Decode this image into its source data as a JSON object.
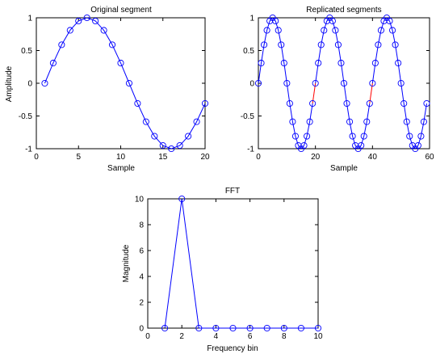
{
  "colors": {
    "series": "#0000ff",
    "joint": "#ff0000",
    "axes": "#000000",
    "background": "#ffffff"
  },
  "chart_data": [
    {
      "id": "original",
      "type": "line",
      "title": "Original segment",
      "xlabel": "Sample",
      "ylabel": "Amplitude",
      "xlim": [
        0,
        20
      ],
      "ylim": [
        -1,
        1
      ],
      "xticks": [
        0,
        5,
        10,
        15,
        20
      ],
      "yticks": [
        -1,
        -0.5,
        0,
        0.5,
        1
      ],
      "xticklabels": [
        "0",
        "5",
        "10",
        "15",
        "20"
      ],
      "yticklabels": [
        "-1",
        "-0.5",
        "0",
        "0.5",
        "1"
      ],
      "marker": "circle",
      "x": [
        1,
        2,
        3,
        4,
        5,
        6,
        7,
        8,
        9,
        10,
        11,
        12,
        13,
        14,
        15,
        16,
        17,
        18,
        19,
        20
      ],
      "y": [
        0,
        0.309,
        0.588,
        0.809,
        0.951,
        1,
        0.951,
        0.809,
        0.588,
        0.309,
        0,
        -0.309,
        -0.588,
        -0.809,
        -0.951,
        -1,
        -0.951,
        -0.809,
        -0.588,
        -0.309
      ]
    },
    {
      "id": "replicated",
      "type": "line",
      "title": "Replicated segments",
      "xlabel": "Sample",
      "ylabel": "",
      "xlim": [
        0,
        60
      ],
      "ylim": [
        -1,
        1
      ],
      "xticks": [
        0,
        20,
        40,
        60
      ],
      "yticks": [
        -1,
        -0.5,
        0,
        0.5,
        1
      ],
      "xticklabels": [
        "0",
        "20",
        "40",
        "60"
      ],
      "yticklabels": [
        "-1",
        "-0.5",
        "0",
        "0.5",
        "1"
      ],
      "marker": "circle",
      "segment_length": 20,
      "segment_values": [
        0,
        0.309,
        0.588,
        0.809,
        0.951,
        1,
        0.951,
        0.809,
        0.588,
        0.309,
        0,
        -0.309,
        -0.588,
        -0.809,
        -0.951,
        -1,
        -0.951,
        -0.809,
        -0.588,
        -0.309
      ],
      "repeats": 3,
      "joint_color": "#ff0000"
    },
    {
      "id": "fft",
      "type": "line",
      "title": "FFT",
      "xlabel": "Frequency bin",
      "ylabel": "Magnitude",
      "xlim": [
        0,
        10
      ],
      "ylim": [
        0,
        10
      ],
      "xticks": [
        0,
        2,
        4,
        6,
        8,
        10
      ],
      "yticks": [
        0,
        2,
        4,
        6,
        8,
        10
      ],
      "xticklabels": [
        "0",
        "2",
        "4",
        "6",
        "8",
        "10"
      ],
      "yticklabels": [
        "0",
        "2",
        "4",
        "6",
        "8",
        "10"
      ],
      "marker": "circle",
      "x": [
        1,
        2,
        3,
        4,
        5,
        6,
        7,
        8,
        9,
        10
      ],
      "y": [
        0,
        10,
        0,
        0,
        0,
        0,
        0,
        0,
        0,
        0
      ]
    }
  ]
}
